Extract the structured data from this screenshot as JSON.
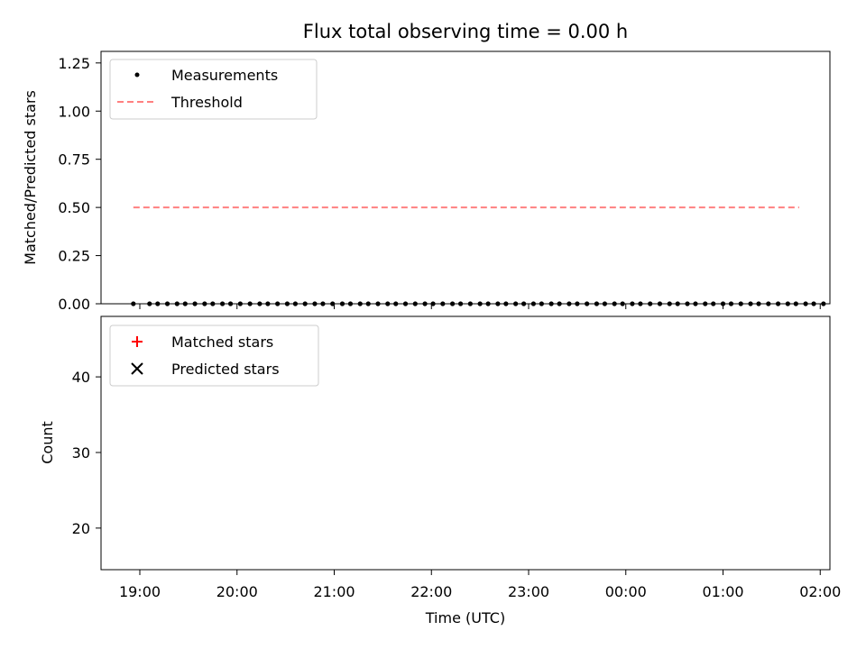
{
  "chart_data": [
    {
      "type": "scatter",
      "title": "Flux total observing time = 0.00 h",
      "xlabel": "",
      "ylabel": "Matched/Predicted stars",
      "ylim": [
        0.0,
        1.31
      ],
      "yticks": [
        "0.00",
        "0.25",
        "0.50",
        "0.75",
        "1.00",
        "1.25"
      ],
      "legend": "top-left",
      "series": [
        {
          "name": "Measurements",
          "color": "#000000",
          "marker": "dot",
          "x": [
            "18:56",
            "19:06",
            "19:11",
            "19:17",
            "19:23",
            "19:28",
            "19:34",
            "19:40",
            "19:45",
            "19:51",
            "19:56",
            "20:02",
            "20:08",
            "20:14",
            "20:19",
            "20:25",
            "20:31",
            "20:36",
            "20:42",
            "20:48",
            "20:53",
            "20:59",
            "21:05",
            "21:10",
            "21:16",
            "21:21",
            "21:27",
            "21:33",
            "21:38",
            "21:44",
            "21:50",
            "21:56",
            "22:01",
            "22:07",
            "22:13",
            "22:18",
            "22:24",
            "22:30",
            "22:35",
            "22:41",
            "22:46",
            "22:52",
            "22:57",
            "23:03",
            "23:08",
            "23:14",
            "23:19",
            "23:25",
            "23:30",
            "23:36",
            "23:42",
            "23:47",
            "23:53",
            "23:58",
            "00:04",
            "00:09",
            "00:15",
            "00:21",
            "00:27",
            "00:32",
            "00:38",
            "00:43",
            "00:49",
            "00:54",
            "01:00",
            "01:05",
            "01:11",
            "01:17",
            "01:22",
            "01:28",
            "01:34",
            "01:40",
            "01:45",
            "01:51",
            "01:56",
            "02:02"
          ],
          "y": [
            0,
            0,
            0,
            0,
            0,
            0,
            0,
            0,
            0,
            0,
            0,
            0,
            0,
            0,
            0,
            0,
            0,
            0,
            0,
            0,
            0,
            0,
            0,
            0,
            0,
            0,
            0,
            0,
            0,
            0,
            0,
            0,
            0,
            0,
            0,
            0,
            0,
            0,
            0,
            0,
            0,
            0,
            0,
            0,
            0,
            0,
            0,
            0,
            0,
            0,
            0,
            0,
            0,
            0,
            0,
            0,
            0,
            0,
            0,
            0,
            0,
            0,
            0,
            0,
            0,
            0,
            0,
            0,
            0,
            0,
            0,
            0,
            0,
            0,
            0,
            0
          ]
        },
        {
          "name": "Threshold",
          "color": "#ff8080",
          "style": "dashed",
          "x": [
            "18:56",
            "01:47"
          ],
          "y": [
            0.5,
            0.5
          ]
        }
      ]
    },
    {
      "type": "scatter",
      "title": "",
      "xlabel": "Time (UTC)",
      "ylabel": "Count",
      "ylim": [
        14.5,
        48
      ],
      "yticks": [
        "20",
        "30",
        "40"
      ],
      "xticks": [
        "19:00",
        "20:00",
        "21:00",
        "22:00",
        "23:00",
        "00:00",
        "01:00",
        "02:00"
      ],
      "legend": "top-left",
      "series": [
        {
          "name": "Matched stars",
          "color": "#ff0000",
          "marker": "plus",
          "x": [],
          "y": []
        },
        {
          "name": "Predicted stars",
          "color": "#000000",
          "marker": "x",
          "x": [],
          "y": []
        }
      ]
    }
  ]
}
